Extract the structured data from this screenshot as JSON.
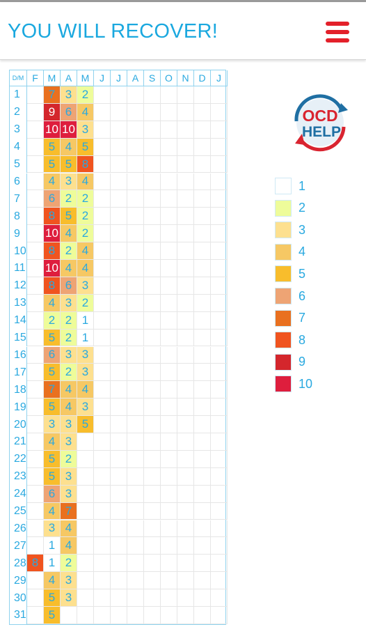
{
  "app": {
    "title": "YOU WILL RECOVER!"
  },
  "header_labels": [
    "D/M",
    "F",
    "M",
    "A",
    "M",
    "J",
    "J",
    "A",
    "S",
    "O",
    "N",
    "D",
    "J"
  ],
  "day_labels": [
    "1",
    "2",
    "3",
    "4",
    "5",
    "6",
    "7",
    "8",
    "9",
    "10",
    "11",
    "12",
    "13",
    "14",
    "15",
    "16",
    "17",
    "18",
    "19",
    "20",
    "21",
    "22",
    "23",
    "24",
    "25",
    "26",
    "27",
    "28",
    "29",
    "30",
    "31"
  ],
  "ratings": {
    "F": [
      null,
      null,
      null,
      null,
      null,
      null,
      null,
      null,
      null,
      null,
      null,
      null,
      null,
      null,
      null,
      null,
      null,
      null,
      null,
      null,
      null,
      null,
      null,
      null,
      null,
      null,
      null,
      8,
      null,
      null,
      null
    ],
    "M": [
      7,
      9,
      10,
      5,
      5,
      4,
      6,
      8,
      10,
      8,
      10,
      8,
      4,
      2,
      5,
      6,
      5,
      7,
      5,
      3,
      4,
      5,
      5,
      6,
      4,
      3,
      1,
      1,
      4,
      5,
      5
    ],
    "A": [
      3,
      6,
      10,
      4,
      5,
      3,
      2,
      5,
      4,
      2,
      4,
      6,
      3,
      2,
      2,
      3,
      2,
      4,
      4,
      3,
      3,
      2,
      3,
      3,
      7,
      4,
      4,
      2,
      3,
      3,
      null
    ],
    "M2": [
      2,
      4,
      3,
      5,
      8,
      4,
      2,
      2,
      2,
      4,
      4,
      3,
      2,
      1,
      1,
      3,
      3,
      4,
      3,
      5,
      null,
      null,
      null,
      null,
      null,
      null,
      null,
      null,
      null,
      null,
      null
    ]
  },
  "logo": {
    "line1": "OCD",
    "line2": "HELP"
  },
  "legend": [
    {
      "label": "1",
      "color": "#ffffff"
    },
    {
      "label": "2",
      "color": "#eefc9a"
    },
    {
      "label": "3",
      "color": "#fde08f"
    },
    {
      "label": "4",
      "color": "#f6c864"
    },
    {
      "label": "5",
      "color": "#f8bd2c"
    },
    {
      "label": "6",
      "color": "#eea474"
    },
    {
      "label": "7",
      "color": "#e9701f"
    },
    {
      "label": "8",
      "color": "#f0541f"
    },
    {
      "label": "9",
      "color": "#d4262c"
    },
    {
      "label": "10",
      "color": "#de1e3d"
    }
  ],
  "colors": {
    "accent": "#29a9e0",
    "menu": "#e3202a",
    "grid": "#e6e6e6"
  }
}
